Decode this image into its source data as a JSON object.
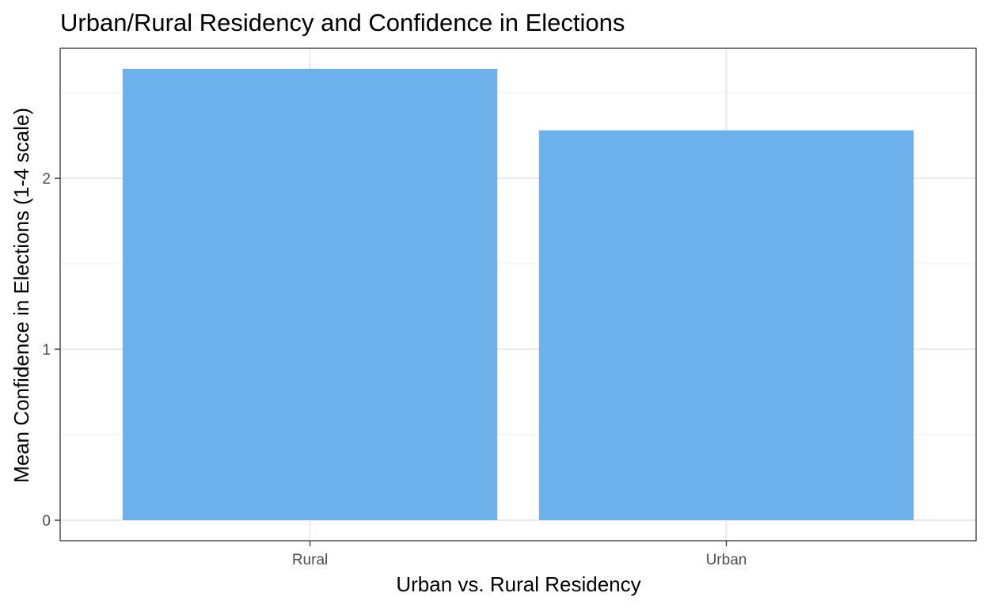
{
  "chart_data": {
    "type": "bar",
    "title": "Urban/Rural Residency and Confidence in Elections",
    "xlabel": "Urban vs. Rural Residency",
    "ylabel": "Mean Confidence in Elections (1-4 scale)",
    "categories": [
      "Rural",
      "Urban"
    ],
    "values": [
      2.64,
      2.28
    ],
    "ylim": [
      -0.12,
      2.76
    ],
    "yticks": [
      0,
      1,
      2
    ],
    "ytick_labels": [
      "0",
      "1",
      "2"
    ],
    "grid": true,
    "legend": "none",
    "theme": "bw",
    "colors": {
      "bar": "#6cb1ec",
      "panel_border": "#333333",
      "grid_major": "#ebebeb",
      "grid_minor": "#f2f2f2",
      "tick": "#333333",
      "tick_label": "#4d4d4d",
      "text": "#000000"
    }
  }
}
